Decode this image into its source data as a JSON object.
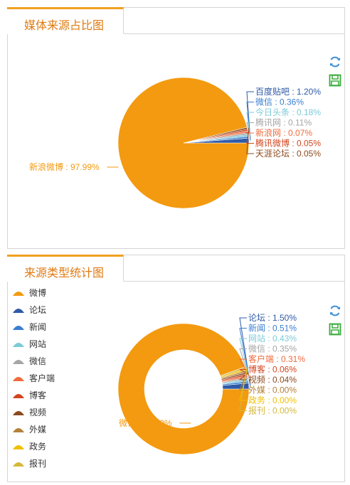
{
  "panels": [
    {
      "title": "媒体来源占比图"
    },
    {
      "title": "来源类型统计图"
    }
  ],
  "toolbox": {
    "refresh_icon": "refresh-icon",
    "save_icon": "save-icon",
    "color": "#3aaa3a",
    "refresh_color": "#3b8fd6"
  },
  "chart_data": [
    {
      "type": "pie",
      "title": "媒体来源占比图",
      "slices": [
        {
          "label": "新浪微博",
          "value": 97.99,
          "display": "97.99%",
          "color": "#f39a10"
        },
        {
          "label": "百度贴吧",
          "value": 1.2,
          "display": "1.20%",
          "color": "#2f5aa8"
        },
        {
          "label": "微信",
          "value": 0.36,
          "display": "0.36%",
          "color": "#3a7fd0"
        },
        {
          "label": "今日头条",
          "value": 0.18,
          "display": "0.18%",
          "color": "#7ccad8"
        },
        {
          "label": "腾讯网",
          "value": 0.11,
          "display": "0.11%",
          "color": "#a6a6a6"
        },
        {
          "label": "新浪网",
          "value": 0.07,
          "display": "0.07%",
          "color": "#f06a3c"
        },
        {
          "label": "腾讯微博",
          "value": 0.05,
          "display": "0.05%",
          "color": "#d2451e"
        },
        {
          "label": "天涯论坛",
          "value": 0.05,
          "display": "0.05%",
          "color": "#8c4a1e"
        }
      ]
    },
    {
      "type": "pie",
      "title": "来源类型统计图",
      "donut": true,
      "legend_position": "left",
      "slices": [
        {
          "label": "微博",
          "value": 96.8,
          "display": "96.80%",
          "color": "#f39a10"
        },
        {
          "label": "论坛",
          "value": 1.5,
          "display": "1.50%",
          "color": "#2f5aa8"
        },
        {
          "label": "新闻",
          "value": 0.51,
          "display": "0.51%",
          "color": "#3a7fd0"
        },
        {
          "label": "网站",
          "value": 0.43,
          "display": "0.43%",
          "color": "#7ccad8"
        },
        {
          "label": "微信",
          "value": 0.35,
          "display": "0.35%",
          "color": "#a6a6a6"
        },
        {
          "label": "客户端",
          "value": 0.31,
          "display": "0.31%",
          "color": "#f06a3c"
        },
        {
          "label": "博客",
          "value": 0.06,
          "display": "0.06%",
          "color": "#d2451e"
        },
        {
          "label": "视频",
          "value": 0.04,
          "display": "0.04%",
          "color": "#8c4a1e"
        },
        {
          "label": "外媒",
          "value": 0.0,
          "display": "0.00%",
          "color": "#b5803a"
        },
        {
          "label": "政务",
          "value": 0.0,
          "display": "0.00%",
          "color": "#f0c000"
        },
        {
          "label": "报刊",
          "value": 0.0,
          "display": "0.00%",
          "color": "#d4b83a"
        }
      ]
    }
  ]
}
